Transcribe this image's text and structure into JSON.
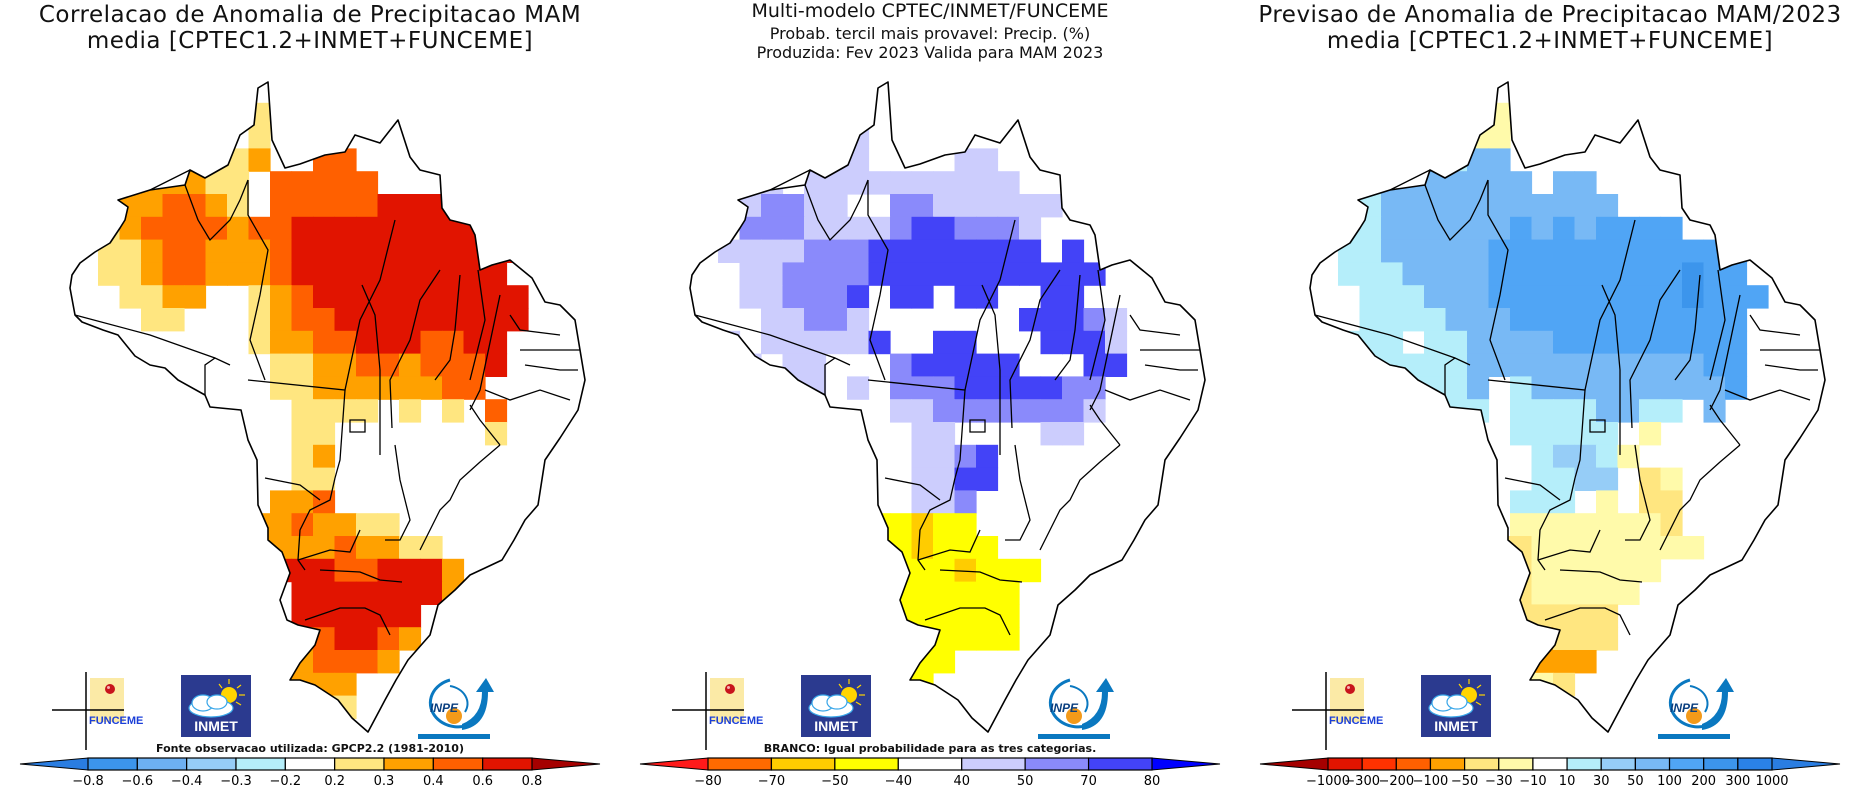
{
  "panels": [
    {
      "id": "correlation",
      "title_lines": [
        "Correlacao de Anomalia de Precipitacao MAM",
        "media [CPTEC1.2+INMET+FUNCEME]"
      ],
      "footnote": "Fonte observacao utilizada: GPCP2.2 (1981-2010)",
      "colorbar": {
        "left_arrow_color": "#2a7de1",
        "right_arrow_color": "#a50000",
        "colors": [
          "#3c95ec",
          "#6db0f2",
          "#96cdf7",
          "#b5eefa",
          "#ffffff",
          "#ffe680",
          "#ffa100",
          "#ff6000",
          "#e11400"
        ],
        "labels": [
          "-0.8",
          "-0.6",
          "-0.4",
          "-0.3",
          "-0.2",
          "0.2",
          "0.3",
          "0.4",
          "0.6",
          "0.8"
        ]
      },
      "grid_rows": [
        "......................",
        ".......5.5............",
        ".......5.5............",
        ".....55556..77........",
        "..5566655.77777.......",
        "..5667765.777778888...",
        "..5677776778888888888.",
        "..55677666788888888888",
        "..5567766678888888888.",
        "...5566..5678888888888",
        "....55...5677888888888",
        ".5.......566778887788.",
        "..........55667767778.",
        "..........5566666677..",
        "...........5555.5.5.7.",
        "...........55.......5.",
        "...........56.........",
        "...........55.........",
        "..........667.........",
        ".........6676655......",
        ".........666676655....",
        ".........6888778886...",
        "...........88888886...",
        "...........888888.....",
        "..........6678876.....",
        "..........667776......",
        "..........6666........",
        "...........555........"
      ],
      "logos": {
        "funceme": "FUNCEME",
        "inmet": "INMET",
        "inpe": "INPE"
      }
    },
    {
      "id": "probability",
      "title_lines": [
        "Multi-modelo CPTEC/INMET/FUNCEME",
        "Probab. tercil mais provavel: Precip. (%)",
        "Produzida: Fev 2023  Valida para MAM 2023"
      ],
      "footnote": "BRANCO: Igual probabilidade para as tres categorias.",
      "colorbar": {
        "left_arrow_color": "#ff1a1a",
        "right_arrow_color": "#0000ff",
        "colors": [
          "#ff6a00",
          "#ffcc00",
          "#ffff00",
          "#ffffff",
          "#cccdfd",
          "#8a8afb",
          "#4343f7"
        ],
        "labels": [
          "-80",
          "-70",
          "-50",
          "-40",
          "40",
          "50",
          "70",
          "80"
        ]
      },
      "grid_rows": [
        "......................",
        "......................",
        "........4.............",
        ".......44....44.......",
        "..3.4.4444444444......",
        "...45544..55444444....",
        "...55544445665554.....",
        "..444455566666666.6...",
        "...44555566666666666..",
        "...4455568668668866...",
        "....44554788888866654.",
        ".44.44444688668886664.",
        "..44.44...56666678866.",
        "...4.44.4.5556666655..",
        "..........4455555554..",
        "...........44....44...",
        "...........4456.......",
        "...........4466.......",
        "...........445........",
        ".........22122........",
        ".........221222.......",
        ".........02221222.....",
        ".........0222222......",
        "..........222222......",
        "..........222222......",
        "..........222.........",
        "...........2..........",
        "......................"
      ],
      "logos": {
        "funceme": "FUNCEME",
        "inmet": "INMET",
        "inpe": "INPE"
      }
    },
    {
      "id": "anomaly",
      "title_lines": [
        "Previsao de Anomalia de Precipitacao MAM/2023",
        "media [CPTEC1.2+INMET+FUNCEME]"
      ],
      "footnote": "",
      "colorbar": {
        "left_arrow_color": "#a50000",
        "right_arrow_color": "#2a7de1",
        "colors": [
          "#e11400",
          "#ff3200",
          "#ff6000",
          "#ffa100",
          "#ffe680",
          "#fffaaa",
          "#ffffff",
          "#b5eefa",
          "#96cdf7",
          "#78b9f5",
          "#50a5f5",
          "#3c95ec",
          "#2a82e8"
        ],
        "labels": [
          "-1000",
          "-300",
          "-200",
          "-100",
          "-50",
          "-30",
          "-10",
          "10",
          "30",
          "50",
          "100",
          "200",
          "300",
          "1000"
        ]
      },
      "grid_rows": [
        "......................",
        ".........5............",
        "........55............",
        ".......799............",
        "..779999999.99........",
        "..7799999999999.......",
        "..77999999a9a9aaaa....",
        "..7799999aaaaaaaaaaaa.",
        "..7779999aaaaaaaaabaa.",
        "...777999aaaaaaaaabaaa",
        "...7777999aaaaaaaaaaa.",
        ".7777.779999aaaaaaaaa.",
        "..77777799999999999aa.",
        "..7777779.7999999999a.",
        "...777.77.77779977.9..",
        "..........77777.5.....",
        "...........78875......",
        "...........7788.45....",
        "..........77765.44....",
        "..........55555554....",
        ".........4455555555...",
        ".........44555555.....",
        ".........3455555......",
        "..........44444.......",
        "..........43444.......",
        "..........4333........",
        "..........554.........",
        "...........5.........."
      ],
      "logos": {
        "funceme": "FUNCEME",
        "inmet": "INMET",
        "inpe": "INPE"
      }
    }
  ]
}
